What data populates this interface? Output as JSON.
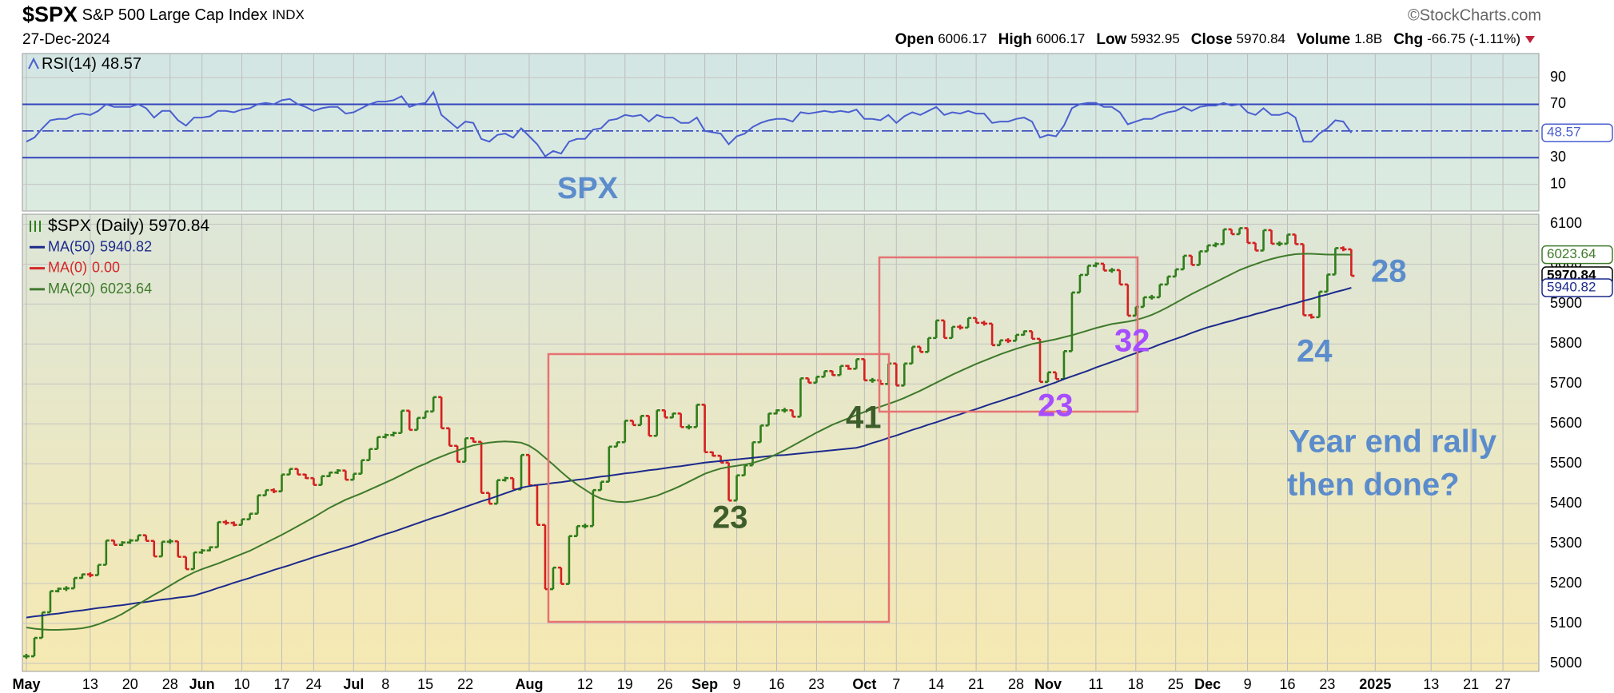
{
  "header": {
    "symbol": "$SPX",
    "name": "S&P 500 Large Cap Index",
    "exchange": "INDX",
    "date": "27-Dec-2024",
    "source": "©StockCharts.com",
    "quote": [
      {
        "label": "Open",
        "value": "6006.17"
      },
      {
        "label": "High",
        "value": "6006.17"
      },
      {
        "label": "Low",
        "value": "5932.95"
      },
      {
        "label": "Close",
        "value": "5970.84"
      },
      {
        "label": "Volume",
        "value": "1.8B"
      },
      {
        "label": "Chg",
        "value": "-66.75 (-1.11%)"
      }
    ]
  },
  "chart_data": [
    {
      "type": "ohlc",
      "grid": true,
      "ylim": [
        4980,
        6125
      ],
      "yticks": [
        5000,
        5100,
        5200,
        5300,
        5400,
        5500,
        5600,
        5700,
        5800,
        5900,
        6000,
        6100
      ],
      "categories": [
        "May",
        null,
        null,
        null,
        null,
        null,
        null,
        null,
        "13",
        null,
        null,
        null,
        null,
        "20",
        null,
        null,
        null,
        null,
        "28",
        null,
        null,
        null,
        "Jun",
        null,
        null,
        null,
        null,
        "10",
        null,
        null,
        null,
        null,
        "17",
        null,
        null,
        null,
        "24",
        null,
        null,
        null,
        null,
        "Jul",
        null,
        null,
        null,
        "8",
        null,
        null,
        null,
        null,
        "15",
        null,
        null,
        null,
        null,
        "22",
        null,
        null,
        null,
        null,
        null,
        null,
        null,
        "Aug",
        null,
        null,
        null,
        null,
        null,
        null,
        "12",
        null,
        null,
        null,
        null,
        "19",
        null,
        null,
        null,
        null,
        "26",
        null,
        null,
        null,
        null,
        "Sep",
        null,
        null,
        null,
        "9",
        null,
        null,
        null,
        null,
        "16",
        null,
        null,
        null,
        null,
        "23",
        null,
        null,
        null,
        null,
        null,
        "Oct",
        null,
        null,
        null,
        "7",
        null,
        null,
        null,
        null,
        "14",
        null,
        null,
        null,
        null,
        "21",
        null,
        null,
        null,
        null,
        "28",
        null,
        null,
        null,
        "Nov",
        null,
        null,
        null,
        null,
        null,
        "11",
        null,
        null,
        null,
        null,
        "18",
        null,
        null,
        null,
        null,
        "25",
        null,
        null,
        null,
        "Dec",
        null,
        null,
        null,
        null,
        "9",
        null,
        null,
        null,
        null,
        "16",
        null,
        null,
        null,
        null,
        "23",
        null,
        null,
        null,
        null,
        null,
        "2025",
        null,
        null,
        null,
        null,
        null,
        null,
        "13",
        null,
        null,
        null,
        null,
        "21",
        null,
        null,
        null,
        "27",
        null,
        null,
        null,
        null
      ],
      "series": [
        {
          "name": "$SPX (Daily)",
          "color_up": "#2f7d1a",
          "color_down": "#d42020",
          "values": [
            5018,
            5064,
            5128,
            5181,
            5187,
            5188,
            5214,
            5223,
            5221,
            5247,
            5308,
            5297,
            5303,
            5308,
            5321,
            5307,
            5268,
            5305,
            5306,
            5267,
            5236,
            5278,
            5283,
            5291,
            5354,
            5352,
            5347,
            5361,
            5375,
            5421,
            5434,
            5431,
            5473,
            5487,
            5473,
            5464,
            5447,
            5469,
            5478,
            5483,
            5460,
            5475,
            5509,
            5537,
            5567,
            5572,
            5577,
            5633,
            5585,
            5615,
            5631,
            5667,
            5589,
            5545,
            5505,
            5564,
            5555,
            5427,
            5400,
            5459,
            5464,
            5436,
            5522,
            5446,
            5347,
            5186,
            5240,
            5199,
            5319,
            5344,
            5344,
            5434,
            5455,
            5543,
            5554,
            5608,
            5597,
            5620,
            5570,
            5634,
            5616,
            5626,
            5592,
            5592,
            5648,
            5529,
            5520,
            5503,
            5408,
            5471,
            5496,
            5554,
            5596,
            5626,
            5634,
            5634,
            5618,
            5714,
            5703,
            5718,
            5732,
            5722,
            5745,
            5738,
            5762,
            5709,
            5709,
            5700,
            5751,
            5696,
            5751,
            5793,
            5780,
            5815,
            5859,
            5815,
            5843,
            5841,
            5865,
            5853,
            5851,
            5797,
            5809,
            5808,
            5823,
            5832,
            5813,
            5705,
            5729,
            5712,
            5782,
            5929,
            5973,
            5996,
            6001,
            5984,
            5985,
            5949,
            5871,
            5893,
            5917,
            5917,
            5949,
            5969,
            5987,
            6021,
            5998,
            6032,
            6047,
            6050,
            6087,
            6075,
            6090,
            6053,
            6034,
            6085,
            6051,
            6051,
            6074,
            6050,
            5872,
            5867,
            5931,
            5974,
            6040,
            6037,
            5970.84,
            null,
            null,
            null,
            null,
            null,
            null,
            null,
            null,
            null,
            null,
            null,
            null,
            null,
            null,
            null,
            null,
            null,
            null,
            null,
            null,
            null,
            null,
            null
          ]
        },
        {
          "name": "MA(50)",
          "color": "#1c2a8c",
          "values": [
            5115,
            5118,
            5120,
            5123,
            5125,
            5128,
            5131,
            5133,
            5136,
            5139,
            5141,
            5144,
            5146,
            5149,
            5152,
            5154,
            5157,
            5160,
            5162,
            5165,
            5167,
            5170,
            5176,
            5182,
            5189,
            5195,
            5202,
            5208,
            5214,
            5221,
            5227,
            5234,
            5240,
            5246,
            5253,
            5259,
            5266,
            5272,
            5278,
            5284,
            5290,
            5296,
            5303,
            5310,
            5317,
            5324,
            5330,
            5337,
            5344,
            5351,
            5358,
            5365,
            5371,
            5378,
            5385,
            5392,
            5399,
            5406,
            5412,
            5419,
            5426,
            5433,
            5440,
            5444,
            5447,
            5449,
            5452,
            5454,
            5457,
            5460,
            5462,
            5465,
            5468,
            5470,
            5473,
            5476,
            5478,
            5481,
            5484,
            5486,
            5489,
            5492,
            5494,
            5497,
            5500,
            5503,
            5505,
            5507,
            5509,
            5511,
            5513,
            5515,
            5517,
            5519,
            5521,
            5522,
            5524,
            5526,
            5528,
            5530,
            5532,
            5534,
            5536,
            5538,
            5540,
            5545,
            5552,
            5558,
            5565,
            5571,
            5578,
            5585,
            5591,
            5598,
            5604,
            5611,
            5618,
            5624,
            5631,
            5637,
            5644,
            5651,
            5657,
            5664,
            5670,
            5677,
            5684,
            5690,
            5697,
            5704,
            5712,
            5719,
            5726,
            5733,
            5741,
            5748,
            5755,
            5762,
            5770,
            5777,
            5784,
            5791,
            5799,
            5806,
            5813,
            5820,
            5828,
            5835,
            5842,
            5847,
            5853,
            5858,
            5864,
            5869,
            5875,
            5880,
            5886,
            5891,
            5897,
            5902,
            5908,
            5913,
            5919,
            5924,
            5930,
            5935,
            5940.82,
            null,
            null,
            null,
            null,
            null,
            null,
            null,
            null,
            null,
            null,
            null,
            null,
            null,
            null,
            null,
            null,
            null,
            null,
            null,
            null,
            null,
            null,
            null
          ]
        },
        {
          "name": "MA(20)",
          "color": "#3f7a2b",
          "values": [
            5090,
            5087,
            5085,
            5084,
            5084,
            5085,
            5086,
            5088,
            5092,
            5098,
            5106,
            5114,
            5124,
            5136,
            5148,
            5160,
            5172,
            5183,
            5195,
            5207,
            5218,
            5228,
            5236,
            5243,
            5250,
            5258,
            5266,
            5274,
            5282,
            5292,
            5302,
            5312,
            5322,
            5333,
            5344,
            5355,
            5366,
            5378,
            5390,
            5400,
            5410,
            5418,
            5426,
            5435,
            5444,
            5453,
            5462,
            5472,
            5482,
            5492,
            5500,
            5510,
            5518,
            5526,
            5533,
            5540,
            5546,
            5550,
            5553,
            5555,
            5556,
            5555,
            5553,
            5545,
            5532,
            5515,
            5498,
            5480,
            5463,
            5448,
            5435,
            5422,
            5413,
            5408,
            5405,
            5404,
            5406,
            5410,
            5415,
            5420,
            5428,
            5436,
            5445,
            5455,
            5465,
            5475,
            5482,
            5488,
            5492,
            5495,
            5498,
            5502,
            5508,
            5515,
            5524,
            5534,
            5545,
            5556,
            5567,
            5578,
            5588,
            5598,
            5606,
            5614,
            5622,
            5630,
            5637,
            5643,
            5650,
            5657,
            5665,
            5674,
            5683,
            5693,
            5703,
            5713,
            5723,
            5732,
            5741,
            5750,
            5758,
            5766,
            5774,
            5781,
            5788,
            5794,
            5800,
            5804,
            5808,
            5812,
            5817,
            5822,
            5828,
            5834,
            5840,
            5845,
            5850,
            5853,
            5856,
            5860,
            5866,
            5873,
            5882,
            5892,
            5903,
            5914,
            5925,
            5935,
            5945,
            5955,
            5965,
            5975,
            5985,
            5993,
            6000,
            6007,
            6013,
            6018,
            6022,
            6025,
            6026,
            6026,
            6025,
            6024,
            6024,
            6024,
            6023.64,
            null,
            null,
            null,
            null,
            null,
            null,
            null,
            null,
            null,
            null,
            null,
            null,
            null,
            null,
            null,
            null,
            null,
            null,
            null,
            null,
            null,
            null,
            null
          ]
        }
      ],
      "extra_legend": {
        "name": "MA(0)",
        "color": "#d62728",
        "value": 0,
        "value_label": "0.00"
      },
      "annotations": [
        "41",
        "23",
        "23",
        "32",
        "24",
        "28"
      ],
      "note": [
        "Year end rally",
        "then done?"
      ]
    },
    {
      "type": "line",
      "grid": true,
      "ylim": [
        -10,
        108
      ],
      "yticks": [
        10,
        30,
        70,
        90
      ],
      "ref_levels": [
        30,
        70
      ],
      "center_level": 50,
      "ref_color": "#3344bb",
      "annotation": "SPX",
      "series": [
        {
          "name": "RSI(14)",
          "color": "#4a5fcf",
          "values": [
            42,
            45,
            52,
            58,
            59,
            59,
            62,
            63,
            62,
            65,
            70,
            68,
            68,
            68,
            70,
            67,
            60,
            65,
            65,
            58,
            54,
            60,
            60,
            61,
            65,
            65,
            64,
            66,
            67,
            70,
            71,
            70,
            73,
            74,
            70,
            68,
            65,
            67,
            68,
            68,
            63,
            64,
            67,
            70,
            72,
            72,
            73,
            76,
            68,
            70,
            71,
            79,
            62,
            57,
            52,
            57,
            56,
            44,
            42,
            47,
            48,
            45,
            52,
            46,
            40,
            31,
            35,
            33,
            42,
            44,
            44,
            51,
            52,
            58,
            59,
            62,
            61,
            62,
            57,
            62,
            60,
            60,
            56,
            56,
            60,
            50,
            49,
            48,
            40,
            46,
            48,
            53,
            56,
            58,
            59,
            59,
            57,
            64,
            63,
            64,
            65,
            64,
            65,
            64,
            66,
            59,
            59,
            58,
            62,
            56,
            61,
            64,
            62,
            65,
            68,
            62,
            64,
            63,
            65,
            63,
            63,
            56,
            57,
            57,
            59,
            60,
            57,
            45,
            47,
            46,
            54,
            67,
            70,
            71,
            71,
            68,
            68,
            64,
            55,
            57,
            59,
            59,
            62,
            64,
            65,
            68,
            65,
            68,
            69,
            69,
            71,
            69,
            70,
            64,
            62,
            67,
            62,
            62,
            64,
            60,
            42,
            42,
            48,
            52,
            58,
            57,
            48.57,
            null,
            null,
            null,
            null,
            null,
            null,
            null,
            null,
            null,
            null,
            null,
            null,
            null,
            null,
            null,
            null,
            null,
            null,
            null,
            null,
            null,
            null,
            null
          ]
        }
      ]
    }
  ]
}
